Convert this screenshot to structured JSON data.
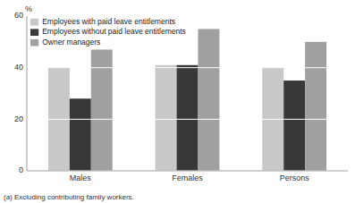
{
  "chart_data": {
    "type": "bar",
    "categories": [
      "Males",
      "Females",
      "Persons"
    ],
    "series": [
      {
        "name": "Employees with paid leave entitlements",
        "color": "#c8c8c8",
        "values": [
          40,
          41,
          40
        ]
      },
      {
        "name": "Employees without paid leave entitlements",
        "color": "#383838",
        "values": [
          28,
          41,
          35
        ]
      },
      {
        "name": "Owner managers",
        "color": "#a0a0a0",
        "values": [
          47,
          55,
          50
        ]
      }
    ],
    "y_label": "%",
    "footnote": "(a) Excluding contributing family workers.",
    "ylim": [
      0,
      60
    ],
    "yticks": [
      0,
      20,
      40,
      60
    ],
    "grid": true,
    "legend": "upper left"
  }
}
